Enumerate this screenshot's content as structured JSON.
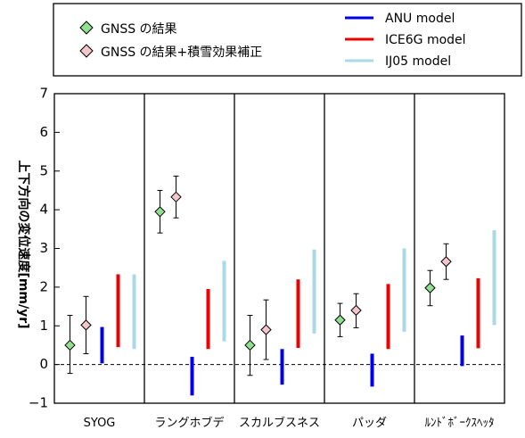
{
  "chart_data": {
    "type": "scatter",
    "ylabel": "上下方向の変位速度[mm/yr]",
    "ylim": [
      -1,
      7
    ],
    "yticks": [
      -1,
      0,
      1,
      2,
      3,
      4,
      5,
      6,
      7
    ],
    "ytick_labels": [
      "−1",
      "0",
      "1",
      "2",
      "3",
      "4",
      "5",
      "6",
      "7"
    ],
    "grid": false,
    "zero_line": "dashed",
    "legend_placement": "top",
    "categories": [
      "SYOG",
      "ラングホブデ",
      "スカルブスネス",
      "パッダ",
      "ﾙﾝﾄﾞﾎﾞｰｸｽﾍｯﾀ"
    ],
    "series": [
      {
        "name": "GNSS の結果",
        "kind": "point_with_error",
        "marker": "diamond",
        "color": "#8fe08f",
        "values": [
          0.5,
          3.95,
          0.5,
          1.15,
          1.98
        ],
        "lower": [
          -0.23,
          3.4,
          -0.28,
          0.72,
          1.52
        ],
        "upper": [
          1.27,
          4.5,
          1.27,
          1.58,
          2.43
        ]
      },
      {
        "name": "GNSS の結果+積雪効果補正",
        "kind": "point_with_error",
        "marker": "diamond",
        "color": "#f4c6cc",
        "values": [
          1.02,
          4.33,
          0.9,
          1.4,
          2.66
        ],
        "lower": [
          0.28,
          3.79,
          0.13,
          0.95,
          2.2
        ],
        "upper": [
          1.76,
          4.87,
          1.67,
          1.83,
          3.12
        ]
      },
      {
        "name": "ANU model",
        "kind": "range_bar",
        "color": "#0000ee",
        "lower": [
          0.03,
          -0.8,
          -0.52,
          -0.57,
          -0.04
        ],
        "upper": [
          0.97,
          0.2,
          0.4,
          0.28,
          0.75
        ]
      },
      {
        "name": "ICE6G model",
        "kind": "range_bar",
        "color": "#ee0000",
        "lower": [
          0.45,
          0.4,
          0.43,
          0.4,
          0.42
        ],
        "upper": [
          2.33,
          1.95,
          2.2,
          2.08,
          2.23
        ]
      },
      {
        "name": "IJ05 model",
        "kind": "range_bar",
        "color": "#a9d8e6",
        "lower": [
          0.4,
          0.6,
          0.8,
          0.85,
          1.02
        ],
        "upper": [
          2.33,
          2.68,
          2.97,
          3.0,
          3.47
        ]
      }
    ]
  }
}
